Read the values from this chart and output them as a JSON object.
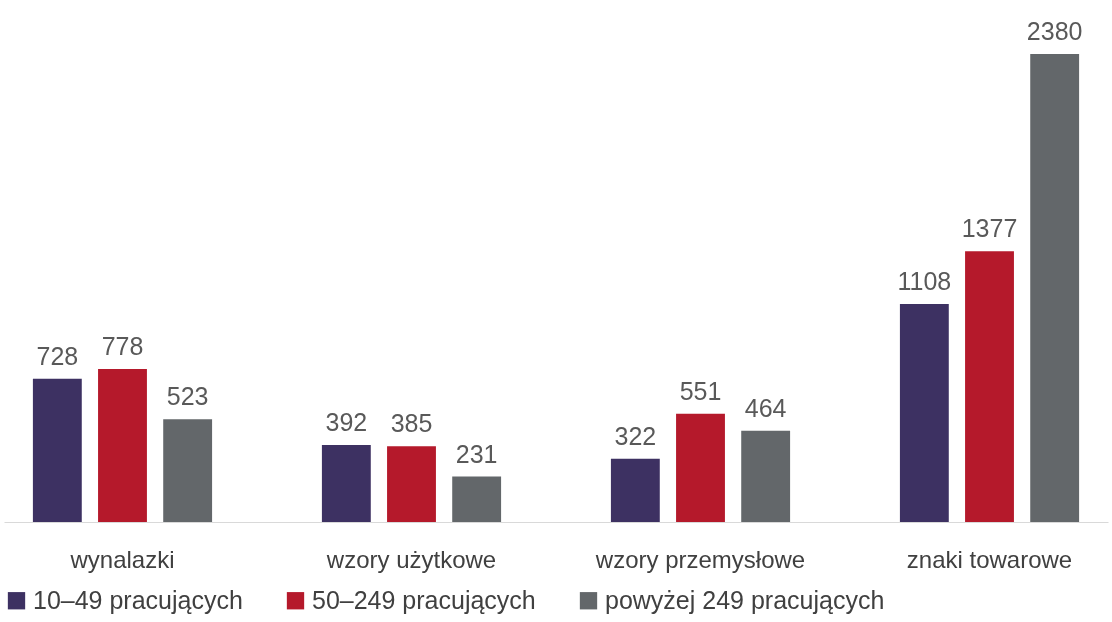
{
  "chart_data": {
    "type": "bar",
    "categories": [
      "wynalazki",
      "wzory użytkowe",
      "wzory przemysłowe",
      "znaki towarowe"
    ],
    "series": [
      {
        "name": "10–49 pracujących",
        "color": "#3d3162",
        "values": [
          728,
          392,
          322,
          1108
        ]
      },
      {
        "name": "50–249 pracujących",
        "color": "#b5192b",
        "values": [
          778,
          385,
          551,
          1377
        ]
      },
      {
        "name": "powyżej 249 pracujących",
        "color": "#63676a",
        "values": [
          523,
          231,
          464,
          2380
        ]
      }
    ],
    "data_labels": true,
    "legend": "bottom",
    "grid": false
  }
}
